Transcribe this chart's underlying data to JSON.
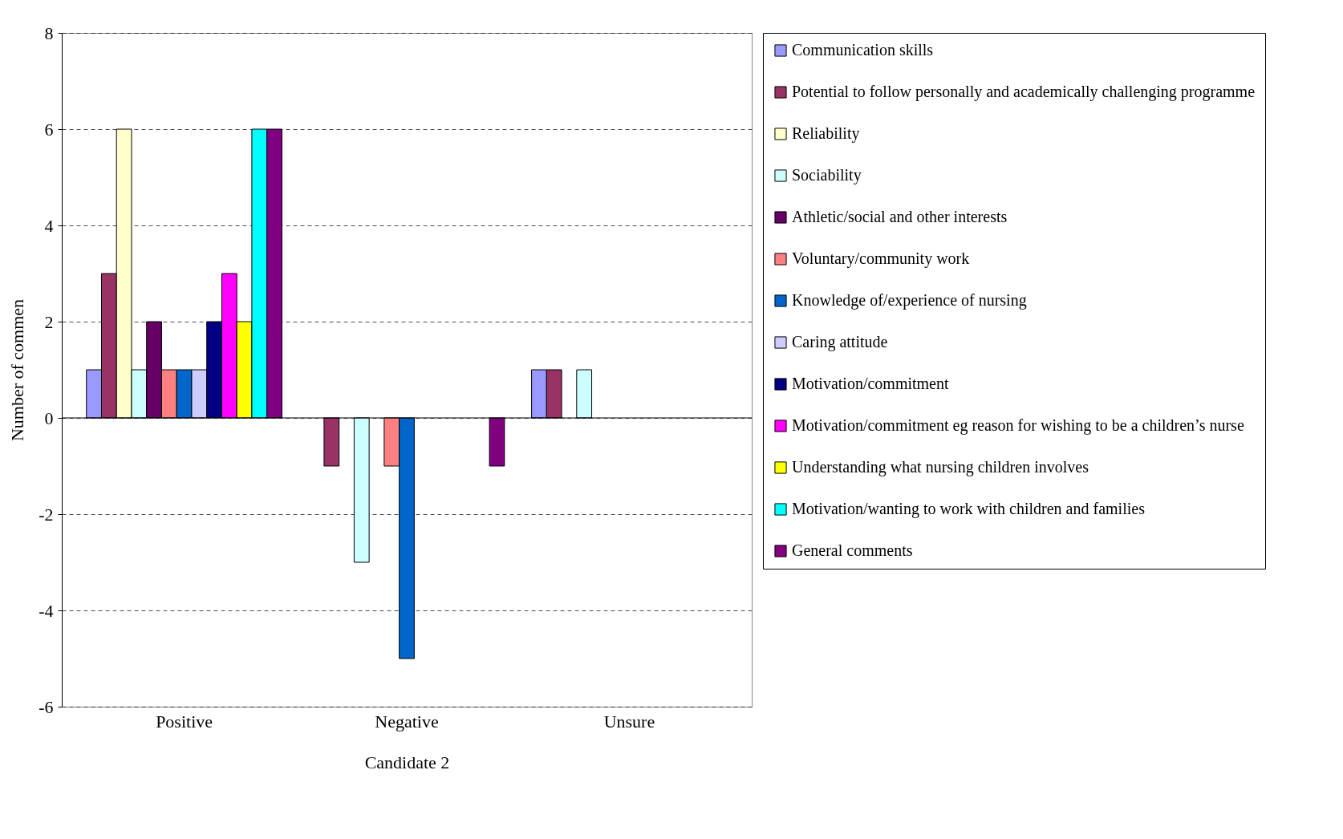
{
  "chart_data": {
    "type": "bar",
    "xlabel": "Candidate 2",
    "ylabel": "Number of commen",
    "categories": [
      "Positive",
      "Negative",
      "Unsure"
    ],
    "ylim": [
      -6,
      8
    ],
    "yticks": [
      -6,
      -4,
      -2,
      0,
      2,
      4,
      6,
      8
    ],
    "grid": "y",
    "legend": "right",
    "series": [
      {
        "name": "Communication skills",
        "color": "#9999ff",
        "values": [
          1,
          null,
          1
        ]
      },
      {
        "name": "Potential to follow personally and academically challenging programme",
        "color": "#993366",
        "values": [
          3,
          -1,
          1
        ]
      },
      {
        "name": "Reliability",
        "color": "#ffffcc",
        "values": [
          6,
          null,
          null
        ]
      },
      {
        "name": "Sociability",
        "color": "#ccffff",
        "values": [
          1,
          -3,
          1
        ]
      },
      {
        "name": "Athletic/social and other interests",
        "color": "#660066",
        "values": [
          2,
          null,
          null
        ]
      },
      {
        "name": "Voluntary/community work",
        "color": "#ff8080",
        "values": [
          1,
          -1,
          null
        ]
      },
      {
        "name": "Knowledge of/experience of nursing",
        "color": "#0066cc",
        "values": [
          1,
          -5,
          null
        ]
      },
      {
        "name": "Caring attitude",
        "color": "#ccccff",
        "values": [
          1,
          null,
          null
        ]
      },
      {
        "name": "Motivation/commitment",
        "color": "#000080",
        "values": [
          2,
          null,
          null
        ]
      },
      {
        "name": "Motivation/commitment eg reason for wishing to be a children’s nurse",
        "color": "#ff00ff",
        "values": [
          3,
          null,
          null
        ]
      },
      {
        "name": "Understanding what nursing children involves",
        "color": "#ffff00",
        "values": [
          2,
          null,
          null
        ]
      },
      {
        "name": "Motivation/wanting to work with children and families",
        "color": "#00ffff",
        "values": [
          6,
          null,
          null
        ]
      },
      {
        "name": "General comments",
        "color": "#800080",
        "values": [
          6,
          -1,
          null
        ]
      }
    ]
  }
}
